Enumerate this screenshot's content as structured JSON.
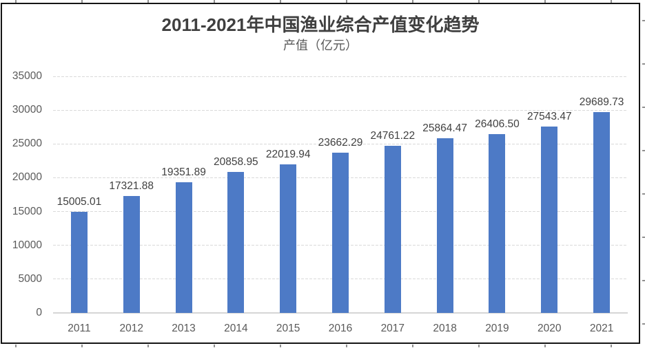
{
  "chart_data": {
    "type": "bar",
    "title": "2011-2021年中国渔业综合产值变化趋势",
    "subtitle": "产值（亿元）",
    "categories": [
      "2011",
      "2012",
      "2013",
      "2014",
      "2015",
      "2016",
      "2017",
      "2018",
      "2019",
      "2020",
      "2021"
    ],
    "values": [
      15005.01,
      17321.88,
      19351.89,
      20858.95,
      22019.94,
      23662.29,
      24761.22,
      25864.47,
      26406.5,
      27543.47,
      29689.73
    ],
    "data_labels": [
      "15005.01",
      "17321.88",
      "19351.89",
      "20858.95",
      "22019.94",
      "23662.29",
      "24761.22",
      "25864.47",
      "26406.50",
      "27543.47",
      "29689.73"
    ],
    "xlabel": "",
    "ylabel": "",
    "ylim": [
      0,
      35000
    ],
    "yticks": [
      0,
      5000,
      10000,
      15000,
      20000,
      25000,
      30000,
      35000
    ],
    "grid": true,
    "legend": false,
    "colors": {
      "bar": "#4D7AC6",
      "gridline": "#D9D9D9",
      "baseline": "#D5D5D5",
      "axis_label": "#595959",
      "data_label": "#404040",
      "title": "#3F3F3F",
      "subtitle": "#595959",
      "frame_border": "#141414"
    }
  }
}
